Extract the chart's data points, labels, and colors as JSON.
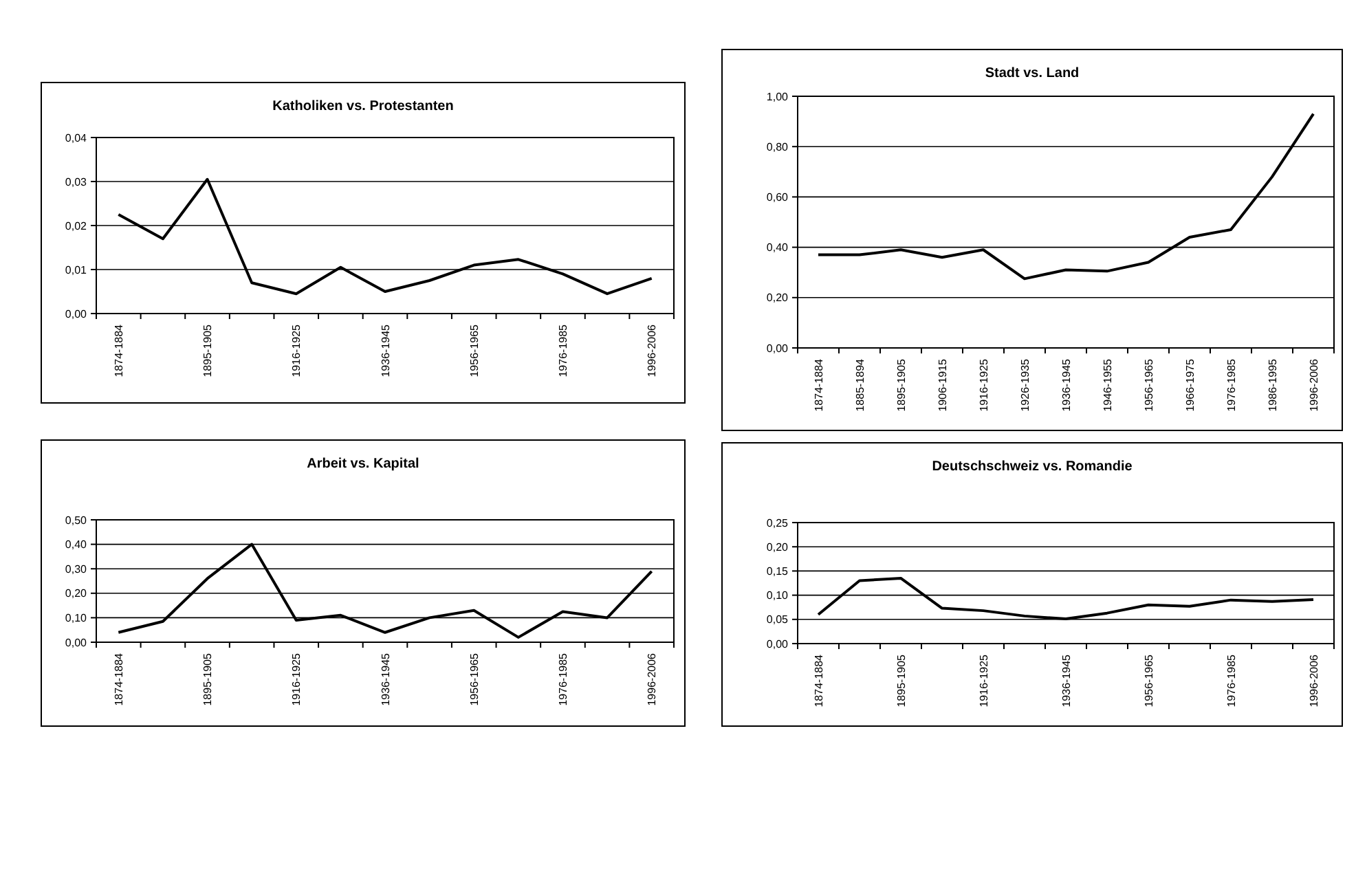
{
  "chart_data": [
    {
      "type": "line",
      "title": "Katholiken vs. Protestanten",
      "categories": [
        "1874-1884",
        null,
        "1895-1905",
        null,
        "1916-1925",
        null,
        "1936-1945",
        null,
        "1956-1965",
        null,
        "1976-1985",
        null,
        "1996-2006"
      ],
      "series": [
        {
          "color": "#000000",
          "values": [
            0.0225,
            0.017,
            0.0305,
            0.007,
            0.0045,
            0.0105,
            0.005,
            0.0075,
            0.011,
            0.0123,
            0.009,
            0.0045,
            0.008
          ]
        }
      ],
      "ylim": [
        0,
        0.04
      ],
      "yticks": [
        {
          "value": 0,
          "label": "0,00"
        },
        {
          "value": 0.01,
          "label": "0,01"
        },
        {
          "value": 0.02,
          "label": "0,02"
        },
        {
          "value": 0.03,
          "label": "0,03"
        },
        {
          "value": 0.04,
          "label": "0,04"
        }
      ],
      "grid": "y"
    },
    {
      "type": "line",
      "title": "Stadt vs. Land",
      "categories": [
        "1874-1884",
        "1885-1894",
        "1895-1905",
        "1906-1915",
        "1916-1925",
        "1926-1935",
        "1936-1945",
        "1946-1955",
        "1956-1965",
        "1966-1975",
        "1976-1985",
        "1986-1995",
        "1996-2006"
      ],
      "series": [
        {
          "color": "#000000",
          "values": [
            0.37,
            0.37,
            0.39,
            0.36,
            0.39,
            0.275,
            0.31,
            0.305,
            0.34,
            0.44,
            0.47,
            0.68,
            0.93
          ]
        }
      ],
      "ylim": [
        0,
        1
      ],
      "yticks": [
        {
          "value": 0,
          "label": "0,00"
        },
        {
          "value": 0.2,
          "label": "0,20"
        },
        {
          "value": 0.4,
          "label": "0,40"
        },
        {
          "value": 0.6,
          "label": "0,60"
        },
        {
          "value": 0.8,
          "label": "0,80"
        },
        {
          "value": 1,
          "label": "1,00"
        }
      ],
      "grid": "y"
    },
    {
      "type": "line",
      "title": "Arbeit vs. Kapital",
      "categories": [
        "1874-1884",
        null,
        "1895-1905",
        null,
        "1916-1925",
        null,
        "1936-1945",
        null,
        "1956-1965",
        null,
        "1976-1985",
        null,
        "1996-2006"
      ],
      "series": [
        {
          "color": "#000000",
          "values": [
            0.04,
            0.085,
            0.26,
            0.4,
            0.09,
            0.11,
            0.04,
            0.1,
            0.13,
            0.02,
            0.125,
            0.1,
            0.29
          ]
        }
      ],
      "ylim": [
        0,
        0.5
      ],
      "yticks": [
        {
          "value": 0,
          "label": "0,00"
        },
        {
          "value": 0.1,
          "label": "0,10"
        },
        {
          "value": 0.2,
          "label": "0,20"
        },
        {
          "value": 0.3,
          "label": "0,30"
        },
        {
          "value": 0.4,
          "label": "0,40"
        },
        {
          "value": 0.5,
          "label": "0,50"
        }
      ],
      "grid": "y"
    },
    {
      "type": "line",
      "title": "Deutschschweiz vs. Romandie",
      "categories": [
        "1874-1884",
        null,
        "1895-1905",
        null,
        "1916-1925",
        null,
        "1936-1945",
        null,
        "1956-1965",
        null,
        "1976-1985",
        null,
        "1996-2006"
      ],
      "series": [
        {
          "color": "#000000",
          "values": [
            0.06,
            0.13,
            0.135,
            0.073,
            0.068,
            0.057,
            0.051,
            0.063,
            0.08,
            0.077,
            0.09,
            0.087,
            0.091
          ]
        }
      ],
      "ylim": [
        0,
        0.25
      ],
      "yticks": [
        {
          "value": 0,
          "label": "0,00"
        },
        {
          "value": 0.05,
          "label": "0,05"
        },
        {
          "value": 0.1,
          "label": "0,10"
        },
        {
          "value": 0.15,
          "label": "0,15"
        },
        {
          "value": 0.2,
          "label": "0,20"
        },
        {
          "value": 0.25,
          "label": "0,25"
        }
      ],
      "grid": "y"
    }
  ]
}
